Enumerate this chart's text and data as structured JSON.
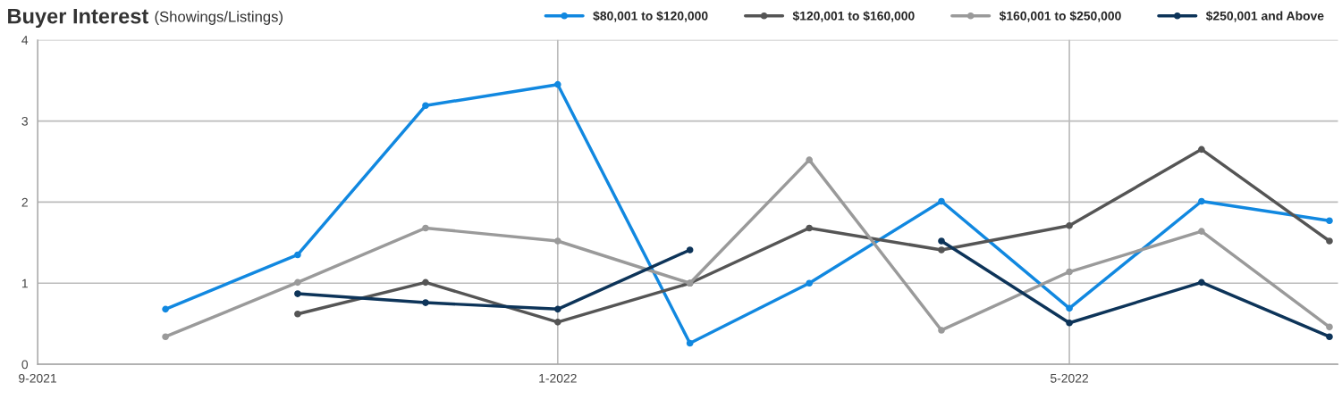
{
  "chart_data": {
    "type": "line",
    "title": "Buyer Interest",
    "subtitle": "(Showings/Listings)",
    "x": [
      "2021-10",
      "2021-11",
      "2021-12",
      "2022-01",
      "2022-02",
      "2022-03",
      "2022-04",
      "2022-05",
      "2022-06",
      "2022-07"
    ],
    "series": [
      {
        "name": "$80,001 to $120,000",
        "color": "#1188e0",
        "values": [
          0.68,
          1.35,
          3.19,
          3.45,
          0.26,
          1.0,
          2.01,
          0.69,
          2.01,
          1.77
        ]
      },
      {
        "name": "$120,001 to $160,000",
        "color": "#555555",
        "values": [
          null,
          0.62,
          1.01,
          0.52,
          1.0,
          1.68,
          1.41,
          1.71,
          2.65,
          1.52
        ]
      },
      {
        "name": "$160,001 to $250,000",
        "color": "#9a9a9a",
        "values": [
          0.34,
          1.01,
          1.68,
          1.52,
          1.0,
          2.52,
          0.42,
          1.14,
          1.64,
          0.46
        ]
      },
      {
        "name": "$250,001 and Above",
        "color": "#0d3459",
        "values": [
          null,
          0.87,
          0.76,
          0.68,
          1.41,
          null,
          1.52,
          0.51,
          1.01,
          0.34
        ]
      }
    ],
    "xlim": [
      "2021-09",
      "2022-07-03"
    ],
    "xticks": [
      {
        "value": "2021-09",
        "label": "9-2021"
      },
      {
        "value": "2022-01",
        "label": "1-2022"
      },
      {
        "value": "2022-05",
        "label": "5-2022"
      }
    ],
    "ylim": [
      0,
      4
    ],
    "yticks": [
      0,
      1,
      2,
      3,
      4
    ],
    "grid": true,
    "legend": "top right",
    "marker": "circle",
    "line_style": "solid"
  }
}
